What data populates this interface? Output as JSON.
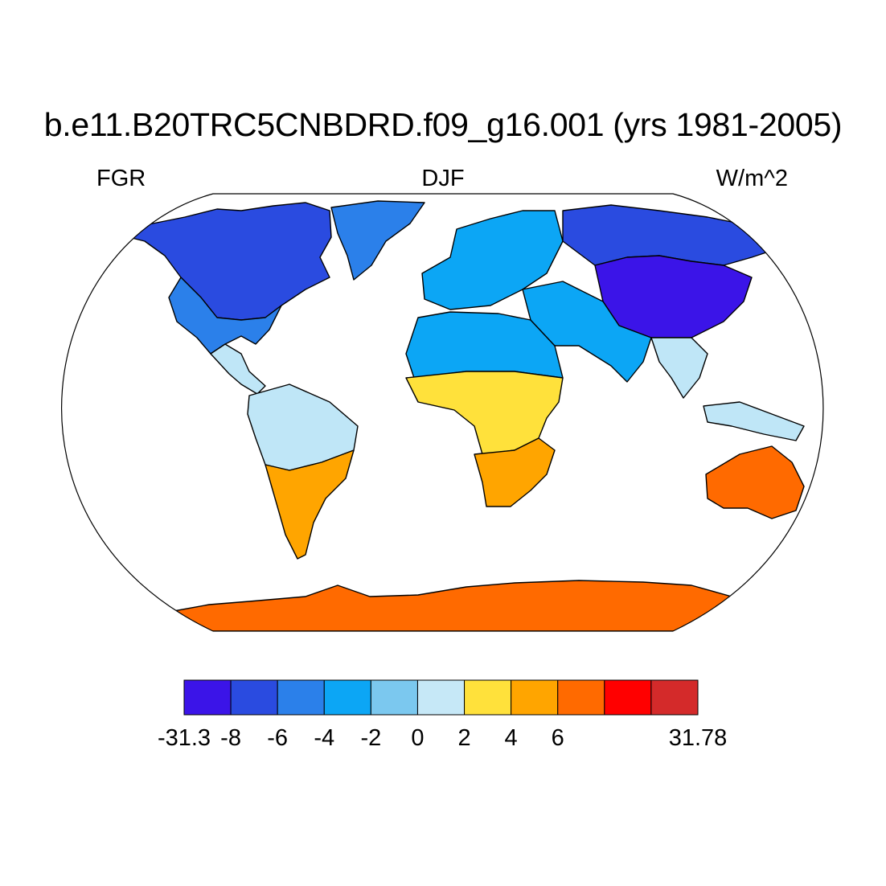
{
  "map": {
    "title": "b.e11.B20TRC5CNBDRD.f09_g16.001 (yrs 1981-2005)",
    "left_label": "FGR",
    "center_label": "DJF",
    "right_label": "W/m^2",
    "projection": "robinson",
    "land_regions": [
      {
        "name": "north-america-north",
        "color": "#2a4be0"
      },
      {
        "name": "north-america-south",
        "color": "#2b80ea"
      },
      {
        "name": "greenland",
        "color": "#2b80ea"
      },
      {
        "name": "central-america",
        "color": "#bfe6f7"
      },
      {
        "name": "south-america-north",
        "color": "#bfe6f7"
      },
      {
        "name": "south-america-south",
        "color": "#ffa500"
      },
      {
        "name": "europe",
        "color": "#0ca6f5"
      },
      {
        "name": "north-africa",
        "color": "#0ca6f5"
      },
      {
        "name": "central-africa",
        "color": "#ffe13b"
      },
      {
        "name": "southern-africa",
        "color": "#ffa500"
      },
      {
        "name": "asia-north",
        "color": "#2a4be0"
      },
      {
        "name": "asia-center",
        "color": "#3b14e8"
      },
      {
        "name": "middle-east-india",
        "color": "#0ca6f5"
      },
      {
        "name": "southeast-asia",
        "color": "#bfe6f7"
      },
      {
        "name": "australia",
        "color": "#ff6a00"
      },
      {
        "name": "antarctica",
        "color": "#ff6a00"
      }
    ]
  },
  "colorbar": {
    "colors": [
      "#3b14e8",
      "#2a4be0",
      "#2b80ea",
      "#0ca6f5",
      "#7bc8ef",
      "#c6e8f7",
      "#ffe13b",
      "#ffa500",
      "#ff6a00",
      "#ff0000",
      "#d42a2a"
    ],
    "labels": [
      "-31.3",
      "-8",
      "-6",
      "-4",
      "-2",
      "0",
      "2",
      "4",
      "6",
      "31.78"
    ],
    "label_boundaries": [
      0,
      1,
      2,
      3,
      4,
      5,
      6,
      7,
      8,
      11
    ]
  }
}
